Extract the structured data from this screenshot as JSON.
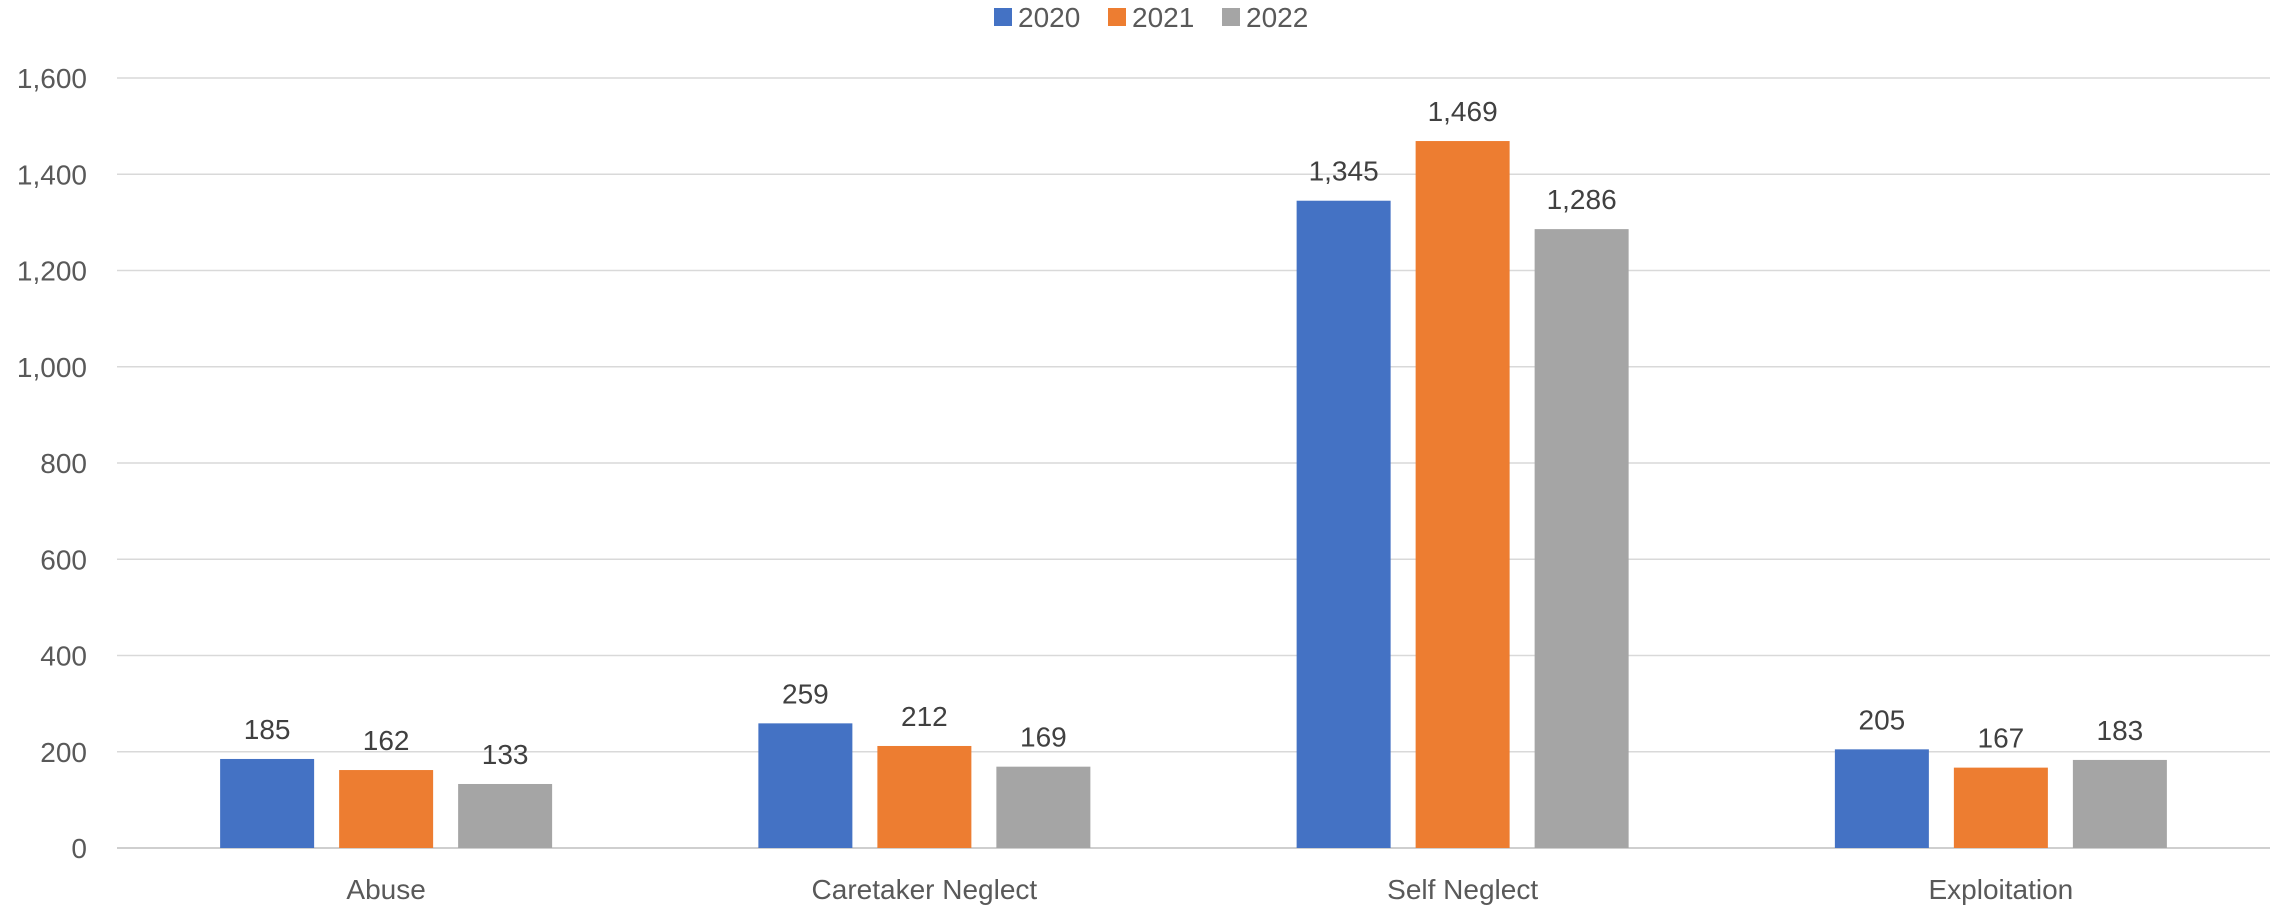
{
  "chart_data": {
    "type": "bar",
    "categories": [
      "Abuse",
      "Caretaker Neglect",
      "Self Neglect",
      "Exploitation"
    ],
    "series": [
      {
        "name": "2020",
        "color": "#4472c4",
        "values": [
          185,
          259,
          1345,
          205
        ]
      },
      {
        "name": "2021",
        "color": "#ed7d31",
        "values": [
          162,
          212,
          1469,
          167
        ]
      },
      {
        "name": "2022",
        "color": "#a5a5a5",
        "values": [
          133,
          169,
          1286,
          183
        ]
      }
    ],
    "ylim": [
      0,
      1600
    ],
    "yticks": [
      0,
      200,
      400,
      600,
      800,
      1000,
      1200,
      1400,
      1600
    ],
    "ytick_labels": [
      "0",
      "200",
      "400",
      "600",
      "800",
      "1,000",
      "1,200",
      "1,400",
      "1,600"
    ],
    "data_labels": [
      [
        "185",
        "259",
        "1,345",
        "205"
      ],
      [
        "162",
        "212",
        "1,469",
        "167"
      ],
      [
        "133",
        "169",
        "1,286",
        "183"
      ]
    ],
    "grid": true,
    "legend_position": "top-center"
  }
}
